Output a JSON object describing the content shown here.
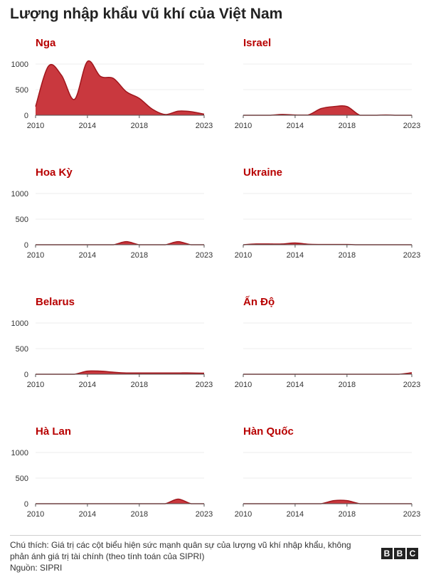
{
  "title": "Lượng nhập khẩu vũ khí của Việt Nam",
  "footnote": "Chú thích: Giá trị các cột biểu hiện sức mạnh quân sự của lượng vũ khí nhập khẩu, không phản ánh giá trị tài chính (theo tính toán của SIPRI)",
  "source": "Nguồn: SIPRI",
  "logo": [
    "B",
    "B",
    "C"
  ],
  "colors": {
    "fill": "#c9383e",
    "stroke": "#a0161c",
    "title": "#b80000"
  },
  "chart_data": [
    {
      "type": "area",
      "title": "Nga",
      "x": [
        2010,
        2011,
        2012,
        2013,
        2014,
        2015,
        2016,
        2017,
        2018,
        2019,
        2020,
        2021,
        2022,
        2023
      ],
      "values": [
        170,
        960,
        780,
        310,
        1050,
        760,
        720,
        460,
        330,
        120,
        15,
        80,
        70,
        20
      ],
      "xticks": [
        "2010",
        "2014",
        "2018",
        "2023"
      ],
      "yticks": [
        "0",
        "500",
        "1000"
      ],
      "ylim": [
        0,
        1100
      ],
      "show_y": true
    },
    {
      "type": "area",
      "title": "Israel",
      "x": [
        2010,
        2011,
        2012,
        2013,
        2014,
        2015,
        2016,
        2017,
        2018,
        2019,
        2020,
        2021,
        2022,
        2023
      ],
      "values": [
        0,
        0,
        0,
        15,
        5,
        5,
        130,
        170,
        170,
        0,
        0,
        5,
        0,
        0
      ],
      "xticks": [
        "2010",
        "2014",
        "2018",
        "2023"
      ],
      "yticks": [],
      "ylim": [
        0,
        1100
      ],
      "show_y": false
    },
    {
      "type": "area",
      "title": "Hoa Kỳ",
      "x": [
        2010,
        2011,
        2012,
        2013,
        2014,
        2015,
        2016,
        2017,
        2018,
        2019,
        2020,
        2021,
        2022,
        2023
      ],
      "values": [
        0,
        0,
        0,
        0,
        0,
        0,
        0,
        60,
        0,
        0,
        0,
        60,
        0,
        0
      ],
      "xticks": [
        "2010",
        "2014",
        "2018",
        "2023"
      ],
      "yticks": [
        "0",
        "500",
        "1000"
      ],
      "ylim": [
        0,
        1100
      ],
      "show_y": true
    },
    {
      "type": "area",
      "title": "Ukraine",
      "x": [
        2010,
        2011,
        2012,
        2013,
        2014,
        2015,
        2016,
        2017,
        2018,
        2019,
        2020,
        2021,
        2022,
        2023
      ],
      "values": [
        0,
        15,
        15,
        15,
        35,
        10,
        5,
        5,
        5,
        0,
        0,
        0,
        0,
        0
      ],
      "xticks": [
        "2010",
        "2014",
        "2018",
        "2023"
      ],
      "yticks": [],
      "ylim": [
        0,
        1100
      ],
      "show_y": false
    },
    {
      "type": "area",
      "title": "Belarus",
      "x": [
        2010,
        2011,
        2012,
        2013,
        2014,
        2015,
        2016,
        2017,
        2018,
        2019,
        2020,
        2021,
        2022,
        2023
      ],
      "values": [
        0,
        0,
        0,
        0,
        60,
        60,
        40,
        25,
        25,
        25,
        25,
        25,
        25,
        20
      ],
      "xticks": [
        "2010",
        "2014",
        "2018",
        "2023"
      ],
      "yticks": [
        "0",
        "500",
        "1000"
      ],
      "ylim": [
        0,
        1100
      ],
      "show_y": true
    },
    {
      "type": "area",
      "title": "Ấn Độ",
      "x": [
        2010,
        2011,
        2012,
        2013,
        2014,
        2015,
        2016,
        2017,
        2018,
        2019,
        2020,
        2021,
        2022,
        2023
      ],
      "values": [
        0,
        0,
        0,
        0,
        0,
        0,
        0,
        0,
        0,
        0,
        0,
        0,
        0,
        30
      ],
      "xticks": [
        "2010",
        "2014",
        "2018",
        "2023"
      ],
      "yticks": [],
      "ylim": [
        0,
        1100
      ],
      "show_y": false
    },
    {
      "type": "area",
      "title": "Hà Lan",
      "x": [
        2010,
        2011,
        2012,
        2013,
        2014,
        2015,
        2016,
        2017,
        2018,
        2019,
        2020,
        2021,
        2022,
        2023
      ],
      "values": [
        0,
        0,
        0,
        0,
        0,
        0,
        0,
        0,
        0,
        0,
        0,
        90,
        0,
        0
      ],
      "xticks": [
        "2010",
        "2014",
        "2018",
        "2023"
      ],
      "yticks": [
        "0",
        "500",
        "1000"
      ],
      "ylim": [
        0,
        1100
      ],
      "show_y": true
    },
    {
      "type": "area",
      "title": "Hàn Quốc",
      "x": [
        2010,
        2011,
        2012,
        2013,
        2014,
        2015,
        2016,
        2017,
        2018,
        2019,
        2020,
        2021,
        2022,
        2023
      ],
      "values": [
        0,
        0,
        0,
        0,
        0,
        0,
        0,
        60,
        60,
        0,
        0,
        0,
        0,
        0
      ],
      "xticks": [
        "2010",
        "2014",
        "2018",
        "2023"
      ],
      "yticks": [],
      "ylim": [
        0,
        1100
      ],
      "show_y": false
    }
  ]
}
